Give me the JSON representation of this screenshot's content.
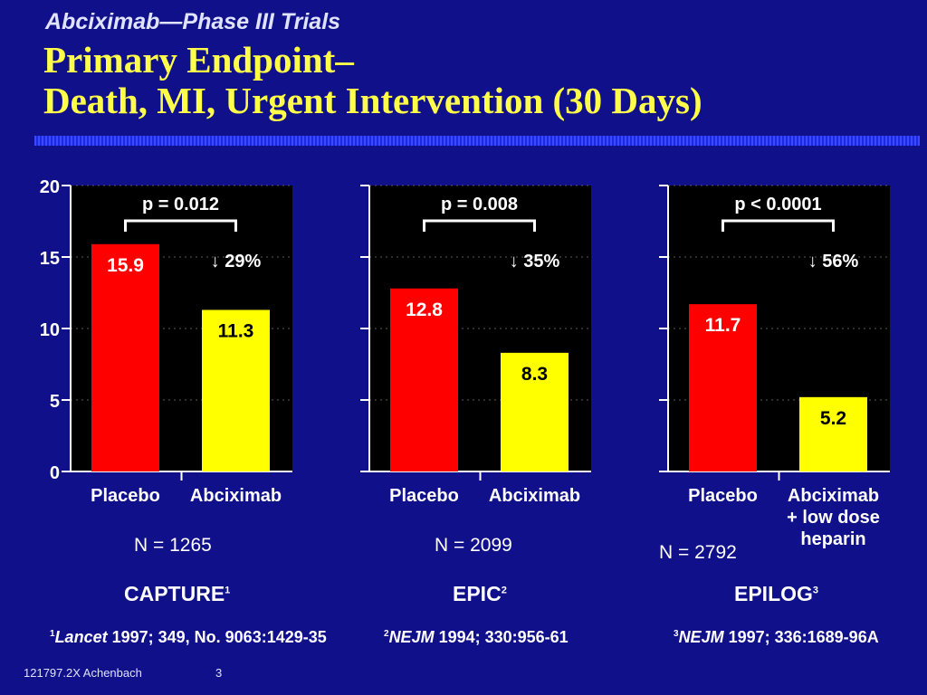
{
  "header": {
    "supertitle": "Abciximab—Phase III Trials",
    "title_line1": "Primary Endpoint–",
    "title_line2": "Death, MI, Urgent Intervention (30 Days)"
  },
  "chart_data": [
    {
      "type": "bar",
      "categories": [
        "Placebo",
        "Abciximab"
      ],
      "values": [
        15.9,
        11.3
      ],
      "ylim": [
        0,
        20
      ],
      "yticks": [
        0,
        5,
        10,
        15,
        20
      ],
      "p_value": "p = 0.012",
      "reduction": "↓ 29%",
      "n": "N = 1265",
      "trial": "CAPTURE",
      "trial_sup": "1",
      "colors": [
        "#ff0000",
        "#ffff00"
      ]
    },
    {
      "type": "bar",
      "categories": [
        "Placebo",
        "Abciximab"
      ],
      "values": [
        12.8,
        8.3
      ],
      "ylim": [
        0,
        20
      ],
      "p_value": "p = 0.008",
      "reduction": "↓ 35%",
      "n": "N = 2099",
      "trial": "EPIC",
      "trial_sup": "2",
      "colors": [
        "#ff0000",
        "#ffff00"
      ]
    },
    {
      "type": "bar",
      "categories": [
        "Placebo",
        "Abciximab\n+ low dose\nheparin"
      ],
      "values": [
        11.7,
        5.2
      ],
      "ylim": [
        0,
        20
      ],
      "p_value": "p < 0.0001",
      "reduction": "↓ 56%",
      "n": "N = 2792",
      "trial": "EPILOG",
      "trial_sup": "3",
      "colors": [
        "#ff0000",
        "#ffff00"
      ]
    }
  ],
  "references": [
    {
      "sup": "1",
      "journal": "Lancet",
      "rest": " 1997; 349, No. 9063:1429-35"
    },
    {
      "sup": "2",
      "journal": "NEJM",
      "rest": " 1994; 330:956-61"
    },
    {
      "sup": "3",
      "journal": "NEJM",
      "rest": " 1997; 336:1689-96A"
    }
  ],
  "footer": {
    "code": "121797.2X Achenbach",
    "page": "3"
  }
}
